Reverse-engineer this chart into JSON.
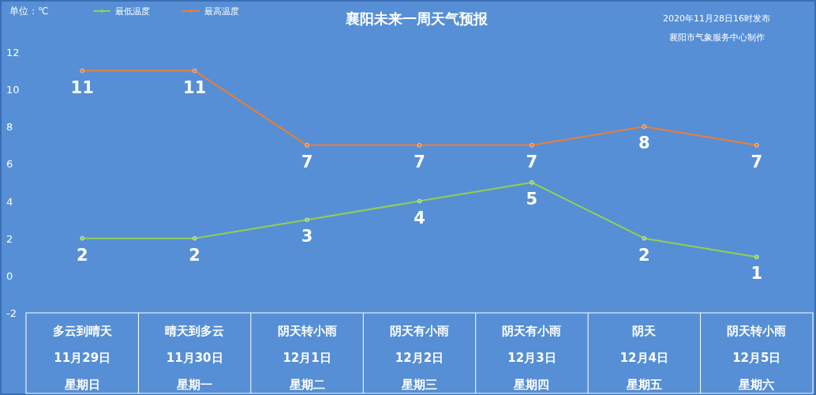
{
  "chart_data": {
    "type": "line",
    "title": "襄阳未来一周天气预报",
    "categories": [
      "多云到晴天11月29日星期日",
      "晴天到多云11月30日星期一",
      "阴天转小雨12月1日星期二",
      "阴天有小雨12月2日星期三",
      "阴天有小雨12月3日星期四",
      "阴天12月4日星期五",
      "阴天转小雨12月5日星期六"
    ],
    "series": [
      {
        "name": "最低温度",
        "color": "#92d050",
        "values": [
          2,
          2,
          3,
          4,
          5,
          2,
          1
        ]
      },
      {
        "name": "最高温度",
        "color": "#ed7d31",
        "values": [
          11,
          11,
          7,
          7,
          7,
          8,
          7
        ]
      }
    ],
    "ylim": [
      -2,
      12
    ],
    "yticks": [
      -2,
      0,
      2,
      4,
      6,
      8,
      10,
      12
    ],
    "annotations": [
      "单位：℃",
      "2020年11月28日16时发布",
      "襄阳市气象服务中心制作"
    ],
    "data_labels": true,
    "legend": "top left",
    "marker": "circle",
    "line_style": "solid",
    "grid": false
  }
}
